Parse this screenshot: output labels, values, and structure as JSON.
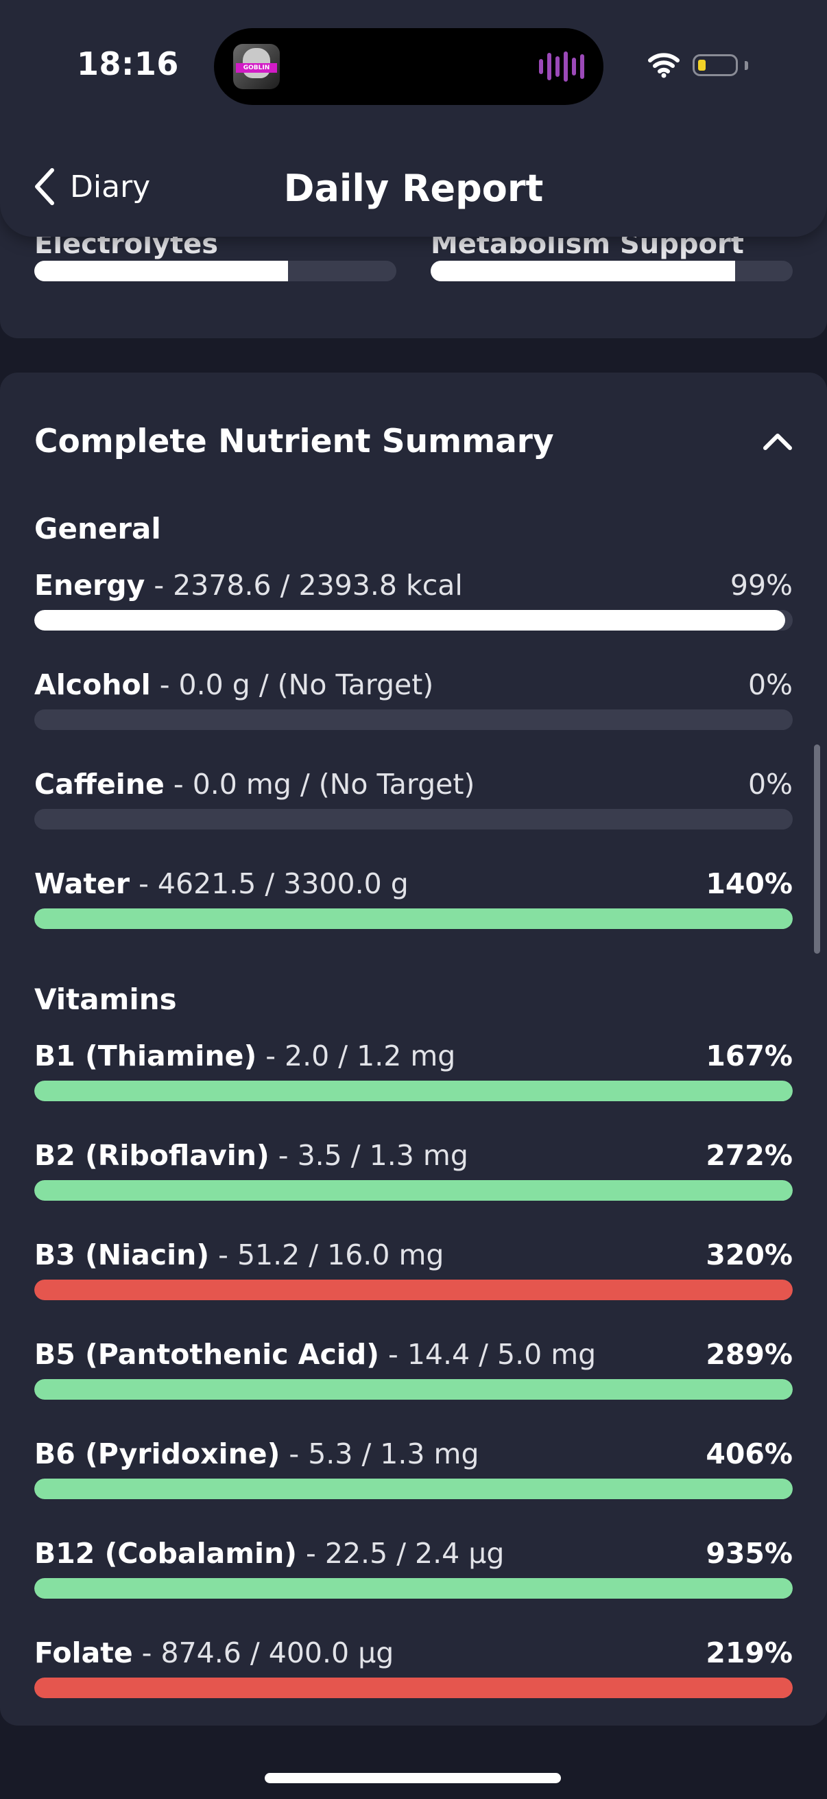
{
  "status_bar": {
    "time": "18:16",
    "island_avatar_text": "GOBLIN",
    "battery_color": "#f2d227"
  },
  "nav": {
    "back_label": "Diary",
    "title": "Daily Report",
    "back_icon": "chevron-left-icon"
  },
  "previous_card": {
    "items": [
      {
        "label": "Electrolytes",
        "percent": 70
      },
      {
        "label": "Metabolism Support",
        "percent": 84
      }
    ]
  },
  "nutrient_summary": {
    "title": "Complete Nutrient Summary",
    "collapse_icon": "chevron-up-icon",
    "sections": [
      {
        "title": "General",
        "rows": [
          {
            "name": "Energy",
            "value": " - 2378.6 / 2393.8 kcal",
            "percent_label": "99%",
            "percent": 99,
            "status": "neutral"
          },
          {
            "name": "Alcohol",
            "value": " - 0.0 g / (No Target)",
            "percent_label": "0%",
            "percent": 0,
            "status": "neutral"
          },
          {
            "name": "Caffeine",
            "value": " - 0.0 mg / (No Target)",
            "percent_label": "0%",
            "percent": 0,
            "status": "neutral"
          },
          {
            "name": "Water",
            "value": " - 4621.5 / 3300.0 g",
            "percent_label": "140%",
            "percent": 140,
            "status": "good"
          }
        ]
      },
      {
        "title": "Vitamins",
        "rows": [
          {
            "name": "B1 (Thiamine)",
            "value": " - 2.0 / 1.2 mg",
            "percent_label": "167%",
            "percent": 167,
            "status": "good"
          },
          {
            "name": "B2 (Riboflavin)",
            "value": " - 3.5 / 1.3 mg",
            "percent_label": "272%",
            "percent": 272,
            "status": "good"
          },
          {
            "name": "B3 (Niacin)",
            "value": " - 51.2 / 16.0 mg",
            "percent_label": "320%",
            "percent": 320,
            "status": "over"
          },
          {
            "name": "B5 (Pantothenic Acid)",
            "value": " - 14.4 / 5.0 mg",
            "percent_label": "289%",
            "percent": 289,
            "status": "good"
          },
          {
            "name": "B6 (Pyridoxine)",
            "value": " - 5.3 / 1.3 mg",
            "percent_label": "406%",
            "percent": 406,
            "status": "good"
          },
          {
            "name": "B12 (Cobalamin)",
            "value": " - 22.5 / 2.4 µg",
            "percent_label": "935%",
            "percent": 935,
            "status": "good"
          },
          {
            "name": "Folate",
            "value": " - 874.6 / 400.0 µg",
            "percent_label": "219%",
            "percent": 219,
            "status": "over"
          }
        ]
      }
    ]
  },
  "colors": {
    "neutral": "#ffffff",
    "good": "#86e0a1",
    "over": "#e5564e",
    "track": "#3a3d4e",
    "card": "#252838",
    "background": "#181a27"
  }
}
